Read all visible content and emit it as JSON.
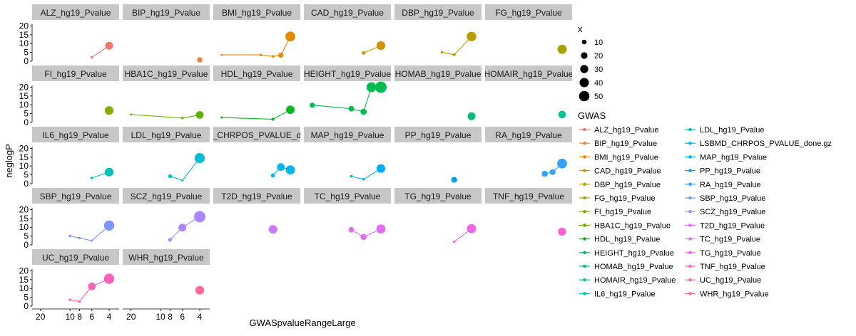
{
  "chart_data": {
    "type": "scatter",
    "title": "",
    "xlabel": "GWASpvalueRangeLarge",
    "ylabel": "neglogP",
    "x_scale": "reverse-log",
    "xlim": [
      22,
      3.5
    ],
    "ylim": [
      0,
      21
    ],
    "x_ticks": [
      20,
      10,
      8,
      6,
      4
    ],
    "y_ticks": [
      0,
      5,
      10,
      15,
      20
    ],
    "grid": false,
    "legend_placement": "right",
    "size_legend": {
      "title": "x",
      "values": [
        10,
        20,
        30,
        40,
        50
      ]
    },
    "color_legend_title": "GWAS",
    "series": [
      {
        "name": "ALZ_hg19_Pvalue",
        "color": "#F8766D",
        "points": [
          [
            6,
            2.2,
            3
          ],
          [
            4,
            8.8,
            28
          ]
        ]
      },
      {
        "name": "BIP_hg19_Pvalue",
        "color": "#EE8043",
        "points": [
          [
            4,
            0.8,
            13
          ]
        ]
      },
      {
        "name": "BMI_hg19_Pvalue",
        "color": "#E18A00",
        "points": [
          [
            20,
            3.6,
            1
          ],
          [
            8,
            3.6,
            3
          ],
          [
            6,
            2.7,
            3
          ],
          [
            5,
            3.4,
            12
          ],
          [
            4,
            14,
            45
          ]
        ]
      },
      {
        "name": "CAD_hg19_Pvalue",
        "color": "#CF9400",
        "points": [
          [
            6,
            4.7,
            6
          ],
          [
            4,
            8.9,
            35
          ]
        ]
      },
      {
        "name": "DBP_hg19_Pvalue",
        "color": "#BB9D00",
        "points": [
          [
            8,
            5.1,
            3
          ],
          [
            6,
            3.7,
            4
          ],
          [
            4,
            14,
            42
          ]
        ]
      },
      {
        "name": "FG_hg19_Pvalue",
        "color": "#A3A500",
        "points": [
          [
            4,
            6.8,
            40
          ]
        ]
      },
      {
        "name": "FI_hg19_Pvalue",
        "color": "#86AC00",
        "points": [
          [
            4,
            6.8,
            35
          ]
        ]
      },
      {
        "name": "HBA1C_hg19_Pvalue",
        "color": "#5EB300",
        "points": [
          [
            20,
            4.5,
            2
          ],
          [
            6,
            2.5,
            3
          ],
          [
            4,
            4.3,
            27
          ]
        ]
      },
      {
        "name": "HDL_hg19_Pvalue",
        "color": "#00B81F",
        "points": [
          [
            20,
            2.8,
            2
          ],
          [
            6,
            1.8,
            4
          ],
          [
            4,
            7.2,
            33
          ]
        ]
      },
      {
        "name": "HEIGHT_hg19_Pvalue",
        "color": "#00BB4E",
        "points": [
          [
            20,
            9.8,
            12
          ],
          [
            8,
            7.8,
            14
          ],
          [
            6,
            6,
            17
          ],
          [
            5,
            20,
            44
          ],
          [
            4,
            20,
            60
          ]
        ]
      },
      {
        "name": "HOMAB_hg19_Pvalue",
        "color": "#00BF74",
        "points": [
          [
            4,
            3.5,
            28
          ]
        ]
      },
      {
        "name": "HOMAIR_hg19_Pvalue",
        "color": "#00C097",
        "points": [
          [
            4,
            4.5,
            26
          ]
        ]
      },
      {
        "name": "IL6_hg19_Pvalue",
        "color": "#00C0B8",
        "points": [
          [
            6,
            3.2,
            3
          ],
          [
            4,
            6.6,
            35
          ]
        ]
      },
      {
        "name": "LDL_hg19_Pvalue",
        "color": "#00BDD4",
        "points": [
          [
            8,
            4.3,
            7
          ],
          [
            6,
            1.8,
            2
          ],
          [
            4,
            14.5,
            47
          ]
        ]
      },
      {
        "name": "LSBMD_CHRPOS_PVALUE_done.gz",
        "color": "#00B6EB",
        "points": [
          [
            6,
            4.7,
            8
          ],
          [
            5,
            9.4,
            27
          ],
          [
            4,
            7.8,
            38
          ]
        ]
      },
      {
        "name": "MAP_hg19_Pvalue",
        "color": "#00ACFC",
        "points": [
          [
            8,
            4.2,
            3
          ],
          [
            6,
            2.5,
            3
          ],
          [
            4,
            8.6,
            35
          ]
        ]
      },
      {
        "name": "PP_hg19_Pvalue",
        "color": "#00A0FF",
        "points": [
          [
            6,
            2.2,
            16
          ]
        ]
      },
      {
        "name": "RA_hg19_Pvalue",
        "color": "#35A2FF",
        "points": [
          [
            6,
            5.6,
            17
          ],
          [
            5,
            6.6,
            16
          ],
          [
            4,
            11.4,
            45
          ]
        ]
      },
      {
        "name": "SBP_hg19_Pvalue",
        "color": "#7F96FF",
        "points": [
          [
            10,
            5.1,
            3
          ],
          [
            8,
            3.9,
            3
          ],
          [
            6,
            2.4,
            2
          ],
          [
            4,
            11,
            48
          ]
        ]
      },
      {
        "name": "SCZ_hg19_Pvalue",
        "color": "#AC88FF",
        "points": [
          [
            8,
            2.9,
            7
          ],
          [
            6,
            9.8,
            28
          ],
          [
            4,
            16,
            60
          ]
        ]
      },
      {
        "name": "T2D_hg19_Pvalue",
        "color": "#CD79FF",
        "points": [
          [
            6,
            8.8,
            35
          ]
        ]
      },
      {
        "name": "TC_hg19_Pvalue",
        "color": "#E36EF6",
        "points": [
          [
            8,
            8.6,
            14
          ],
          [
            6,
            4.5,
            17
          ],
          [
            4,
            9,
            38
          ]
        ]
      },
      {
        "name": "TG_hg19_Pvalue",
        "color": "#F365E6",
        "points": [
          [
            6,
            1.8,
            3
          ],
          [
            4,
            9.2,
            38
          ]
        ]
      },
      {
        "name": "TNF_hg19_Pvalue",
        "color": "#FD61D3",
        "points": [
          [
            4,
            7.5,
            30
          ]
        ]
      },
      {
        "name": "UC_hg19_Pvalue",
        "color": "#FF63BC",
        "points": [
          [
            10,
            3.6,
            3
          ],
          [
            8,
            2.6,
            3
          ],
          [
            6,
            11.2,
            27
          ],
          [
            4,
            15.5,
            48
          ]
        ]
      },
      {
        "name": "WHR_hg19_Pvalue",
        "color": "#FF6A9A",
        "points": [
          [
            4,
            9,
            35
          ]
        ]
      }
    ],
    "facets": [
      {
        "label": "ALZ_hg19_Pvalue",
        "series": 0
      },
      {
        "label": "BIP_hg19_Pvalue",
        "series": 1
      },
      {
        "label": "BMI_hg19_Pvalue",
        "series": 2
      },
      {
        "label": "CAD_hg19_Pvalue",
        "series": 3
      },
      {
        "label": "DBP_hg19_Pvalue",
        "series": 4
      },
      {
        "label": "FG_hg19_Pvalue",
        "series": 5
      },
      {
        "label": "FI_hg19_Pvalue",
        "series": 6
      },
      {
        "label": "HBA1C_hg19_Pvalue",
        "series": 7
      },
      {
        "label": "HDL_hg19_Pvalue",
        "series": 8
      },
      {
        "label": "HEIGHT_hg19_Pvalue",
        "series": 9
      },
      {
        "label": "HOMAB_hg19_Pvalue",
        "series": 10
      },
      {
        "label": "HOMAIR_hg19_Pvalue",
        "series": 11
      },
      {
        "label": "IL6_hg19_Pvalue",
        "series": 12
      },
      {
        "label": "LDL_hg19_Pvalue",
        "series": 13
      },
      {
        "label": "_CHRPOS_PVALUE_d",
        "series": 14
      },
      {
        "label": "MAP_hg19_Pvalue",
        "series": 15
      },
      {
        "label": "PP_hg19_Pvalue",
        "series": 16
      },
      {
        "label": "RA_hg19_Pvalue",
        "series": 17
      },
      {
        "label": "SBP_hg19_Pvalue",
        "series": 18
      },
      {
        "label": "SCZ_hg19_Pvalue",
        "series": 19
      },
      {
        "label": "T2D_hg19_Pvalue",
        "series": 20
      },
      {
        "label": "TC_hg19_Pvalue",
        "series": 21
      },
      {
        "label": "TG_hg19_Pvalue",
        "series": 22
      },
      {
        "label": "TNF_hg19_Pvalue",
        "series": 23
      },
      {
        "label": "UC_hg19_Pvalue",
        "series": 24
      },
      {
        "label": "WHR_hg19_Pvalue",
        "series": 25
      }
    ]
  }
}
